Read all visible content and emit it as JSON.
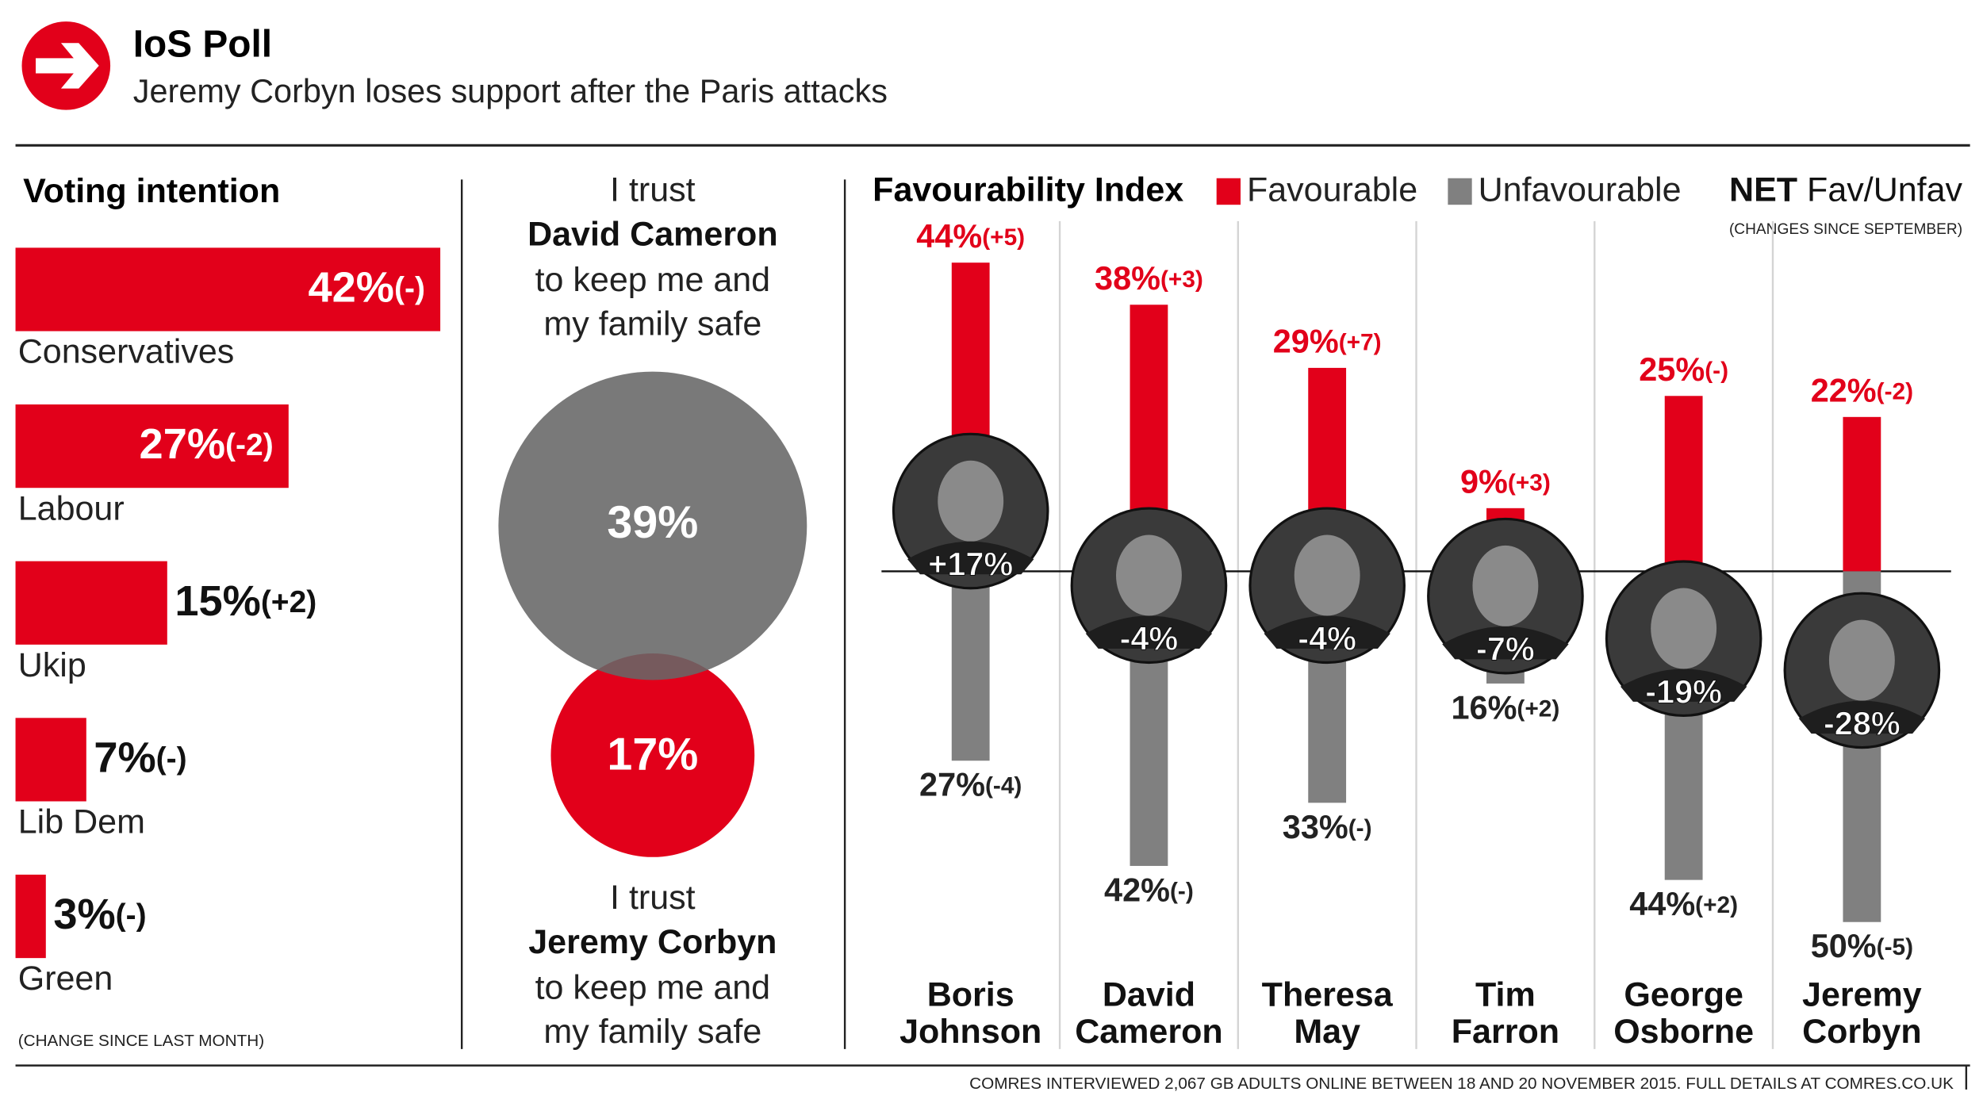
{
  "header": {
    "title": "IoS Poll",
    "subtitle": "Jeremy Corbyn loses support after the Paris attacks"
  },
  "footer": "COMRES INTERVIEWED 2,067 GB ADULTS ONLINE BETWEEN 18 AND 20 NOVEMBER 2015. FULL DETAILS AT COMRES.CO.UK",
  "chart_data": [
    {
      "type": "bar",
      "orientation": "horizontal",
      "title": "Voting intention",
      "categories": [
        "Conservatives",
        "Labour",
        "Ukip",
        "Lib Dem",
        "Green"
      ],
      "values": [
        42,
        27,
        15,
        7,
        3
      ],
      "value_labels": [
        "42%",
        "27%",
        "15%",
        "7%",
        "3%"
      ],
      "changes": [
        0,
        -2,
        2,
        0,
        0
      ],
      "change_labels": [
        "(-)",
        "(-2)",
        "(+2)",
        "(-)",
        "(-)"
      ],
      "note": "(CHANGE SINCE LAST MONTH)",
      "color": "#e2001a",
      "xlim": [
        0,
        42
      ]
    },
    {
      "type": "bubble",
      "caption_top": "I trust",
      "caption_lines": [
        "to keep me and",
        "my family safe"
      ],
      "categories": [
        "David Cameron",
        "Jeremy Corbyn"
      ],
      "values": [
        39,
        17
      ],
      "value_labels": [
        "39%",
        "17%"
      ],
      "colors": [
        "#666666",
        "#e2001a"
      ]
    },
    {
      "type": "diverging_bar",
      "title": "Favourability Index",
      "net_title": "NET",
      "net_subtitle": "Fav/Unfav",
      "note": "(CHANGES SINCE SEPTEMBER)",
      "categories": [
        "Boris Johnson",
        "David Cameron",
        "Theresa May",
        "Tim Farron",
        "George Osborne",
        "Jeremy Corbyn"
      ],
      "series": [
        {
          "name": "Favourable",
          "color": "#e2001a",
          "values": [
            44,
            38,
            29,
            9,
            25,
            22
          ],
          "value_labels": [
            "44%",
            "38%",
            "29%",
            "9%",
            "25%",
            "22%"
          ],
          "changes": [
            5,
            3,
            7,
            3,
            0,
            -2
          ],
          "change_labels": [
            "(+5)",
            "(+3)",
            "(+7)",
            "(+3)",
            "(-)",
            "(-2)"
          ]
        },
        {
          "name": "Unfavourable",
          "color": "#808080",
          "values": [
            27,
            42,
            33,
            16,
            44,
            50
          ],
          "value_labels": [
            "27%",
            "42%",
            "33%",
            "16%",
            "44%",
            "50%"
          ],
          "changes": [
            -4,
            0,
            0,
            2,
            2,
            -5
          ],
          "change_labels": [
            "(-4)",
            "(-)",
            "(-)",
            "(+2)",
            "(+2)",
            "(-5)"
          ]
        }
      ],
      "net": [
        17,
        -4,
        -4,
        -7,
        -19,
        -28
      ],
      "net_labels": [
        "+17%",
        "-4%",
        "-4%",
        "-7%",
        "-19%",
        "-28%"
      ],
      "ylim": [
        -50,
        50
      ]
    }
  ]
}
